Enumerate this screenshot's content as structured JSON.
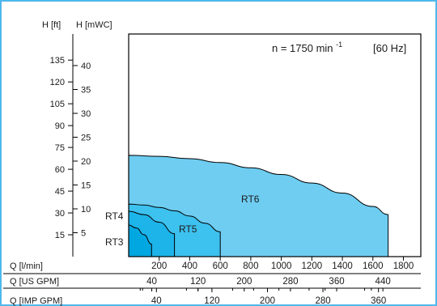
{
  "chart_data": {
    "type": "area",
    "speed_label": {
      "prefix": "n  =  1750  min",
      "exponent": "-1",
      "frequency": "[60 Hz]"
    },
    "y_axes": {
      "ft": {
        "unit": "H [ft]",
        "ticks": [
          15,
          30,
          45,
          60,
          75,
          90,
          105,
          120,
          135
        ]
      },
      "m": {
        "unit": "H [mWC]",
        "ticks": [
          5,
          10,
          15,
          20,
          25,
          30,
          35,
          40
        ]
      },
      "range_m": [
        0,
        43.5
      ]
    },
    "x_axes": {
      "lpm": {
        "unit": "Q [l/min]",
        "ticks": [
          200,
          400,
          600,
          800,
          1000,
          1200,
          1400,
          1600,
          1800
        ]
      },
      "us_gpm": {
        "unit": "Q [US GPM]",
        "ticks": [
          40,
          120,
          200,
          280,
          360,
          440
        ]
      },
      "imp_gpm": {
        "unit": "Q [IMP GPM]",
        "ticks": [
          40,
          120,
          200,
          280,
          360
        ]
      },
      "range_lpm": [
        0,
        1800
      ]
    },
    "series": [
      {
        "name": "RT6",
        "color": "#6ecdf1",
        "x_lpm": [
          0,
          200,
          400,
          600,
          800,
          1000,
          1200,
          1400,
          1600,
          1700
        ],
        "h_m": [
          21.2,
          21.0,
          20.5,
          19.7,
          18.6,
          17.2,
          15.4,
          13.3,
          10.5,
          8.8
        ]
      },
      {
        "name": "RT5",
        "color": "#3dc1ef",
        "x_lpm": [
          0,
          100,
          200,
          300,
          400,
          500,
          600
        ],
        "h_m": [
          11.0,
          10.8,
          10.3,
          9.6,
          8.5,
          7.0,
          5.2
        ]
      },
      {
        "name": "RT4",
        "color": "#1db4ea",
        "x_lpm": [
          0,
          100,
          200,
          300
        ],
        "h_m": [
          9.5,
          8.8,
          7.2,
          4.8
        ]
      },
      {
        "name": "RT3",
        "color": "#00a7e1",
        "x_lpm": [
          0,
          50,
          100,
          150
        ],
        "h_m": [
          6.6,
          6.0,
          4.6,
          2.6
        ]
      }
    ]
  }
}
